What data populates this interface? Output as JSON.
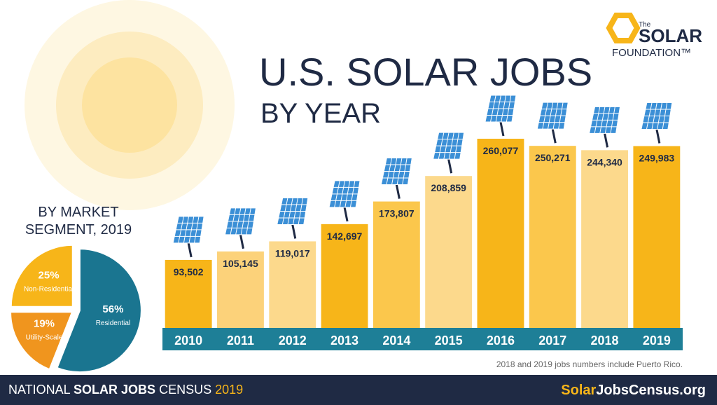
{
  "header": {
    "title": "U.S. SOLAR JOBS",
    "subtitle": "BY YEAR"
  },
  "logo": {
    "small": "The",
    "main": "SOLAR",
    "sub": "FOUNDATION™"
  },
  "chart_data": [
    {
      "type": "bar",
      "categories": [
        "2010",
        "2011",
        "2012",
        "2013",
        "2014",
        "2015",
        "2016",
        "2017",
        "2018",
        "2019"
      ],
      "values": [
        93502,
        105145,
        119017,
        142697,
        173807,
        208859,
        260077,
        250271,
        244340,
        249983
      ],
      "value_labels": [
        "93,502",
        "105,145",
        "119,017",
        "142,697",
        "173,807",
        "208,859",
        "260,077",
        "250,271",
        "244,340",
        "249,983"
      ],
      "colors": [
        "#f7b519",
        "#fcd27a",
        "#fcd98c",
        "#f7b519",
        "#fbc74c",
        "#fcd98c",
        "#f7b519",
        "#fbc74c",
        "#fcd98c",
        "#f7b519"
      ],
      "axis_color": "#1e7f97",
      "note": "2018 and 2019 jobs numbers include Puerto Rico."
    },
    {
      "type": "pie",
      "title": [
        "BY MARKET",
        "SEGMENT, 2019"
      ],
      "categories": [
        "Residential",
        "Utility-Scale",
        "Non-Residential"
      ],
      "values": [
        56,
        19,
        25
      ],
      "value_labels": [
        "56%",
        "19%",
        "25%"
      ],
      "colors": [
        "#1a7590",
        "#f0951e",
        "#f7b519"
      ]
    }
  ],
  "footer": {
    "left": [
      "NATIONAL",
      "SOLAR JOBS",
      "CENSUS",
      "2019"
    ],
    "right": [
      "Solar",
      "JobsCensus.org"
    ]
  }
}
